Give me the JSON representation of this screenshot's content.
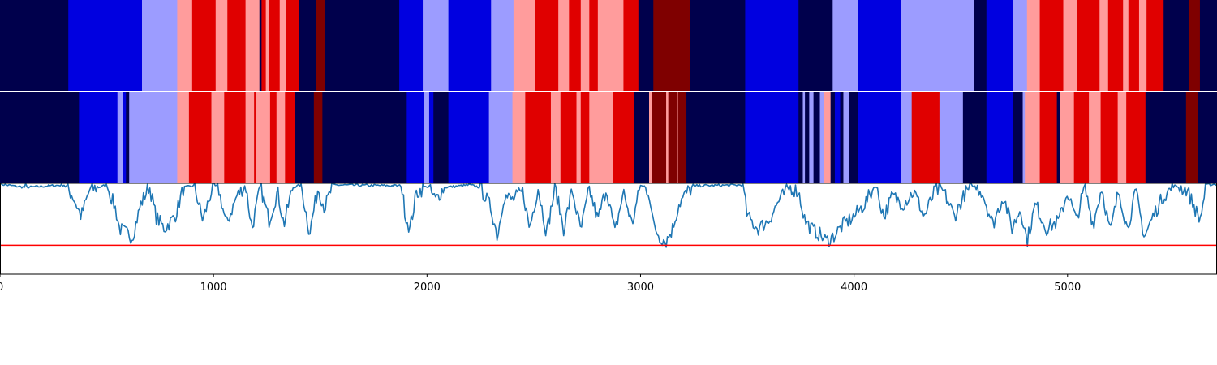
{
  "chart_data": [
    {
      "type": "heatmap",
      "panel": "ground-truth segmentation",
      "x_range": [
        0,
        5700
      ],
      "palette": {
        "0": "#00004c",
        "1": "#0000e0",
        "2": "#9c9cff",
        "3": "#ff9c9c",
        "4": "#e00000",
        "5": "#7f0000"
      },
      "segments": [
        [
          0,
          320,
          0
        ],
        [
          320,
          665,
          1
        ],
        [
          665,
          830,
          2
        ],
        [
          830,
          900,
          3
        ],
        [
          900,
          1010,
          4
        ],
        [
          1010,
          1065,
          3
        ],
        [
          1065,
          1150,
          4
        ],
        [
          1150,
          1215,
          3
        ],
        [
          1215,
          1225,
          0
        ],
        [
          1225,
          1245,
          4
        ],
        [
          1245,
          1260,
          3
        ],
        [
          1260,
          1310,
          4
        ],
        [
          1310,
          1340,
          3
        ],
        [
          1340,
          1400,
          4
        ],
        [
          1400,
          1480,
          0
        ],
        [
          1480,
          1520,
          5
        ],
        [
          1520,
          1870,
          0
        ],
        [
          1870,
          1980,
          1
        ],
        [
          1980,
          2100,
          2
        ],
        [
          2100,
          2300,
          1
        ],
        [
          2300,
          2405,
          2
        ],
        [
          2405,
          2505,
          3
        ],
        [
          2505,
          2615,
          4
        ],
        [
          2615,
          2665,
          3
        ],
        [
          2665,
          2720,
          4
        ],
        [
          2720,
          2760,
          3
        ],
        [
          2760,
          2800,
          4
        ],
        [
          2800,
          2920,
          3
        ],
        [
          2920,
          2990,
          4
        ],
        [
          2990,
          3060,
          0
        ],
        [
          3060,
          3230,
          5
        ],
        [
          3230,
          3490,
          0
        ],
        [
          3490,
          3740,
          1
        ],
        [
          3740,
          3900,
          0
        ],
        [
          3900,
          4020,
          2
        ],
        [
          4020,
          4220,
          1
        ],
        [
          4220,
          4560,
          2
        ],
        [
          4560,
          4620,
          0
        ],
        [
          4620,
          4745,
          1
        ],
        [
          4745,
          4810,
          2
        ],
        [
          4810,
          4870,
          3
        ],
        [
          4870,
          4980,
          4
        ],
        [
          4980,
          5045,
          3
        ],
        [
          5045,
          5150,
          4
        ],
        [
          5150,
          5190,
          3
        ],
        [
          5190,
          5260,
          4
        ],
        [
          5260,
          5285,
          3
        ],
        [
          5285,
          5335,
          4
        ],
        [
          5335,
          5370,
          3
        ],
        [
          5370,
          5450,
          4
        ],
        [
          5450,
          5570,
          0
        ],
        [
          5570,
          5620,
          5
        ],
        [
          5620,
          5700,
          0
        ]
      ]
    },
    {
      "type": "heatmap",
      "panel": "predicted segmentation",
      "x_range": [
        0,
        5700
      ],
      "palette": {
        "0": "#00004c",
        "1": "#0000e0",
        "2": "#9c9cff",
        "3": "#ff9c9c",
        "4": "#e00000",
        "5": "#7f0000"
      },
      "segments": [
        [
          0,
          370,
          0
        ],
        [
          370,
          550,
          1
        ],
        [
          550,
          575,
          2
        ],
        [
          575,
          590,
          1
        ],
        [
          590,
          605,
          0
        ],
        [
          605,
          830,
          2
        ],
        [
          830,
          885,
          3
        ],
        [
          885,
          990,
          4
        ],
        [
          990,
          1050,
          3
        ],
        [
          1050,
          1150,
          4
        ],
        [
          1150,
          1190,
          3
        ],
        [
          1190,
          1200,
          4
        ],
        [
          1200,
          1265,
          3
        ],
        [
          1265,
          1295,
          4
        ],
        [
          1295,
          1335,
          3
        ],
        [
          1335,
          1380,
          4
        ],
        [
          1380,
          1470,
          0
        ],
        [
          1470,
          1510,
          5
        ],
        [
          1510,
          1905,
          0
        ],
        [
          1905,
          1985,
          1
        ],
        [
          1985,
          2010,
          2
        ],
        [
          2010,
          2030,
          1
        ],
        [
          2030,
          2100,
          0
        ],
        [
          2100,
          2290,
          1
        ],
        [
          2290,
          2400,
          2
        ],
        [
          2400,
          2460,
          3
        ],
        [
          2460,
          2580,
          4
        ],
        [
          2580,
          2625,
          3
        ],
        [
          2625,
          2700,
          4
        ],
        [
          2700,
          2720,
          3
        ],
        [
          2720,
          2760,
          4
        ],
        [
          2760,
          2870,
          3
        ],
        [
          2870,
          2970,
          4
        ],
        [
          2970,
          3040,
          0
        ],
        [
          3040,
          3055,
          3
        ],
        [
          3055,
          3120,
          5
        ],
        [
          3120,
          3130,
          3
        ],
        [
          3130,
          3170,
          5
        ],
        [
          3170,
          3175,
          3
        ],
        [
          3175,
          3215,
          5
        ],
        [
          3215,
          3490,
          0
        ],
        [
          3490,
          3740,
          1
        ],
        [
          3740,
          3760,
          0
        ],
        [
          3760,
          3770,
          2
        ],
        [
          3770,
          3790,
          0
        ],
        [
          3790,
          3810,
          2
        ],
        [
          3810,
          3840,
          0
        ],
        [
          3840,
          3860,
          2
        ],
        [
          3860,
          3890,
          3
        ],
        [
          3890,
          3910,
          0
        ],
        [
          3910,
          3935,
          1
        ],
        [
          3935,
          3950,
          0
        ],
        [
          3950,
          3975,
          2
        ],
        [
          3975,
          4020,
          0
        ],
        [
          4020,
          4220,
          1
        ],
        [
          4220,
          4270,
          2
        ],
        [
          4270,
          4400,
          4
        ],
        [
          4400,
          4510,
          2
        ],
        [
          4510,
          4620,
          0
        ],
        [
          4620,
          4745,
          1
        ],
        [
          4745,
          4790,
          0
        ],
        [
          4790,
          4800,
          2
        ],
        [
          4800,
          4870,
          3
        ],
        [
          4870,
          4950,
          4
        ],
        [
          4950,
          4965,
          0
        ],
        [
          4965,
          5030,
          3
        ],
        [
          5030,
          5100,
          4
        ],
        [
          5100,
          5155,
          3
        ],
        [
          5155,
          5235,
          4
        ],
        [
          5235,
          5275,
          3
        ],
        [
          5275,
          5365,
          4
        ],
        [
          5365,
          5375,
          0
        ],
        [
          5375,
          5555,
          0
        ],
        [
          5555,
          5610,
          5
        ],
        [
          5610,
          5700,
          0
        ]
      ]
    },
    {
      "type": "line",
      "panel": "score trace",
      "xlim": [
        0,
        5700
      ],
      "ylim": [
        -0.1,
        1.0
      ],
      "x_ticks": [
        "0",
        "1000",
        "2000",
        "3000",
        "4000",
        "5000"
      ],
      "threshold": 0.25,
      "colors": {
        "line": "#1f77b4",
        "threshold": "#ff0000"
      },
      "knots": [
        [
          0,
          0.99
        ],
        [
          120,
          0.95
        ],
        [
          300,
          0.98
        ],
        [
          340,
          0.85
        ],
        [
          380,
          0.6
        ],
        [
          420,
          0.92
        ],
        [
          500,
          0.98
        ],
        [
          540,
          0.7
        ],
        [
          560,
          0.45
        ],
        [
          620,
          0.35
        ],
        [
          660,
          0.75
        ],
        [
          700,
          0.97
        ],
        [
          730,
          0.6
        ],
        [
          770,
          0.45
        ],
        [
          820,
          0.6
        ],
        [
          860,
          0.95
        ],
        [
          910,
          0.97
        ],
        [
          950,
          0.55
        ],
        [
          990,
          0.9
        ],
        [
          1020,
          0.98
        ],
        [
          1060,
          0.5
        ],
        [
          1110,
          0.85
        ],
        [
          1150,
          0.98
        ],
        [
          1180,
          0.45
        ],
        [
          1220,
          0.96
        ],
        [
          1260,
          0.55
        ],
        [
          1300,
          0.9
        ],
        [
          1330,
          0.5
        ],
        [
          1370,
          0.95
        ],
        [
          1410,
          0.98
        ],
        [
          1450,
          0.4
        ],
        [
          1490,
          0.95
        ],
        [
          1520,
          0.7
        ],
        [
          1560,
          0.98
        ],
        [
          1880,
          0.97
        ],
        [
          1900,
          0.6
        ],
        [
          1920,
          0.45
        ],
        [
          1950,
          0.88
        ],
        [
          2000,
          0.97
        ],
        [
          2040,
          0.8
        ],
        [
          2080,
          0.95
        ],
        [
          2200,
          0.98
        ],
        [
          2250,
          0.95
        ],
        [
          2300,
          0.7
        ],
        [
          2330,
          0.35
        ],
        [
          2360,
          0.85
        ],
        [
          2400,
          0.8
        ],
        [
          2450,
          0.9
        ],
        [
          2480,
          0.45
        ],
        [
          2520,
          0.95
        ],
        [
          2560,
          0.4
        ],
        [
          2600,
          0.95
        ],
        [
          2640,
          0.45
        ],
        [
          2680,
          0.92
        ],
        [
          2720,
          0.42
        ],
        [
          2760,
          0.93
        ],
        [
          2800,
          0.55
        ],
        [
          2840,
          0.95
        ],
        [
          2880,
          0.4
        ],
        [
          2920,
          0.9
        ],
        [
          2960,
          0.5
        ],
        [
          3000,
          0.98
        ],
        [
          3040,
          0.9
        ],
        [
          3060,
          0.5
        ],
        [
          3090,
          0.35
        ],
        [
          3120,
          0.3
        ],
        [
          3150,
          0.45
        ],
        [
          3180,
          0.75
        ],
        [
          3220,
          0.9
        ],
        [
          3260,
          0.97
        ],
        [
          3480,
          0.98
        ],
        [
          3500,
          0.6
        ],
        [
          3550,
          0.45
        ],
        [
          3600,
          0.55
        ],
        [
          3650,
          0.8
        ],
        [
          3700,
          0.95
        ],
        [
          3740,
          0.9
        ],
        [
          3770,
          0.55
        ],
        [
          3800,
          0.45
        ],
        [
          3840,
          0.38
        ],
        [
          3870,
          0.3
        ],
        [
          3900,
          0.35
        ],
        [
          3950,
          0.5
        ],
        [
          4000,
          0.6
        ],
        [
          4050,
          0.75
        ],
        [
          4100,
          0.98
        ],
        [
          4140,
          0.6
        ],
        [
          4180,
          0.85
        ],
        [
          4230,
          0.75
        ],
        [
          4280,
          0.9
        ],
        [
          4330,
          0.6
        ],
        [
          4380,
          0.92
        ],
        [
          4420,
          0.9
        ],
        [
          4470,
          0.6
        ],
        [
          4520,
          0.88
        ],
        [
          4560,
          0.97
        ],
        [
          4600,
          0.9
        ],
        [
          4650,
          0.5
        ],
        [
          4700,
          0.85
        ],
        [
          4740,
          0.45
        ],
        [
          4780,
          0.7
        ],
        [
          4810,
          0.3
        ],
        [
          4850,
          0.75
        ],
        [
          4900,
          0.45
        ],
        [
          4960,
          0.55
        ],
        [
          5000,
          0.9
        ],
        [
          5040,
          0.55
        ],
        [
          5080,
          0.95
        ],
        [
          5120,
          0.5
        ],
        [
          5160,
          0.95
        ],
        [
          5200,
          0.4
        ],
        [
          5240,
          0.92
        ],
        [
          5280,
          0.45
        ],
        [
          5320,
          0.9
        ],
        [
          5360,
          0.35
        ],
        [
          5400,
          0.6
        ],
        [
          5450,
          0.85
        ],
        [
          5500,
          0.97
        ],
        [
          5560,
          0.92
        ],
        [
          5620,
          0.55
        ],
        [
          5650,
          0.98
        ],
        [
          5700,
          0.99
        ]
      ]
    }
  ]
}
